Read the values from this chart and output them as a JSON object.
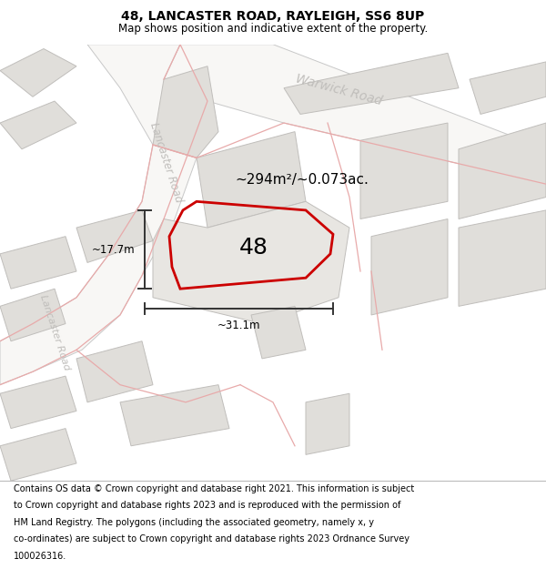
{
  "title_line1": "48, LANCASTER ROAD, RAYLEIGH, SS6 8UP",
  "title_line2": "Map shows position and indicative extent of the property.",
  "footer_lines": [
    "Contains OS data © Crown copyright and database right 2021. This information is subject",
    "to Crown copyright and database rights 2023 and is reproduced with the permission of",
    "HM Land Registry. The polygons (including the associated geometry, namely x, y",
    "co-ordinates) are subject to Crown copyright and database rights 2023 Ordnance Survey",
    "100026316."
  ],
  "map_bg": "#eeece8",
  "road_fill": "#f8f7f5",
  "road_stroke": "#c8c8c8",
  "building_fill": "#e0deda",
  "building_stroke": "#c0bebb",
  "pink_color": "#e8aaaa",
  "property_color": "#cc0000",
  "property_label": "48",
  "area_label": "~294m²/~0.073ac.",
  "width_label": "~31.1m",
  "height_label": "~17.7m",
  "warwick_road_label": "Warwick Road",
  "lancaster_road_label": "Lancaster Road",
  "lancaster_road_2_label": "Lancaster Road",
  "title_fontsize": 10,
  "subtitle_fontsize": 8.5,
  "footer_fontsize": 7.0,
  "road_label_color": "#c0bebb",
  "dim_color": "#333333"
}
